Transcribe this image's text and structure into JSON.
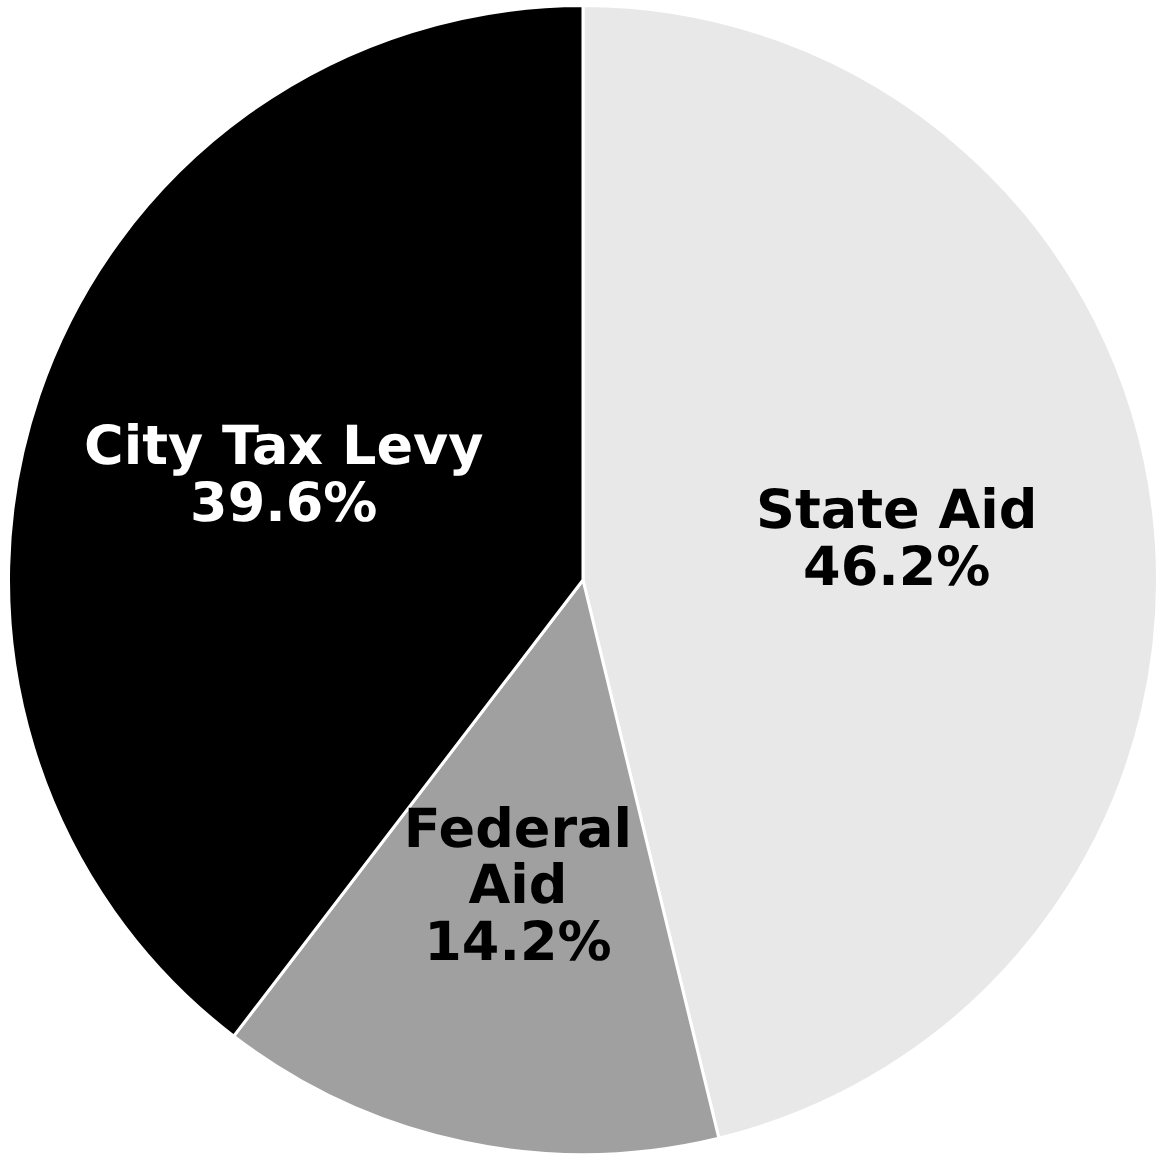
{
  "chart_data": {
    "type": "pie",
    "categories": [
      "State Aid",
      "Federal Aid",
      "City Tax Levy"
    ],
    "values": [
      46.2,
      14.2,
      39.6
    ],
    "value_labels": [
      "46.2%",
      "14.2%",
      "39.6%"
    ],
    "colors": [
      "#e8e8e8",
      "#a0a0a0",
      "#000000"
    ],
    "legend": false
  }
}
